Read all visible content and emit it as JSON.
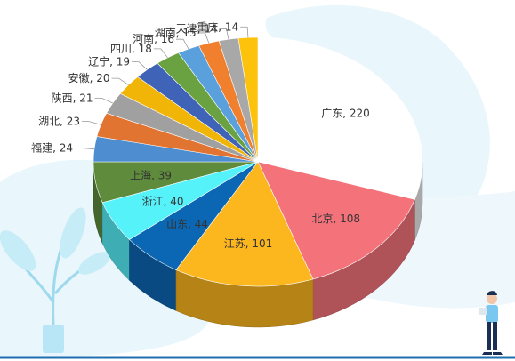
{
  "chart_data": {
    "type": "pie",
    "style": "3d",
    "start_angle_deg": -90,
    "direction": "clockwise",
    "title": "",
    "slices": [
      {
        "label": "广东",
        "value": 220,
        "color": "#ffffff",
        "text": "广东, 220"
      },
      {
        "label": "北京",
        "value": 108,
        "color": "#f4737b",
        "text": "北京, 108"
      },
      {
        "label": "江苏",
        "value": 101,
        "color": "#fcb61e",
        "text": "江苏, 101"
      },
      {
        "label": "山东",
        "value": 44,
        "color": "#0b67b3",
        "text": "山东, 44"
      },
      {
        "label": "浙江",
        "value": 40,
        "color": "#56f2fa",
        "text": "浙江, 40"
      },
      {
        "label": "上海",
        "value": 39,
        "color": "#5e8c3c",
        "text": "上海, 39"
      },
      {
        "label": "福建",
        "value": 24,
        "color": "#4e8ed0",
        "text": "福建, 24"
      },
      {
        "label": "湖北",
        "value": 23,
        "color": "#e27432",
        "text": "湖北, 23"
      },
      {
        "label": "陕西",
        "value": 21,
        "color": "#a0a0a0",
        "text": "陕西, 21"
      },
      {
        "label": "安徽",
        "value": 20,
        "color": "#f1b507",
        "text": "安徽, 20"
      },
      {
        "label": "辽宁",
        "value": 19,
        "color": "#3f63b6",
        "text": "辽宁, 19"
      },
      {
        "label": "四川",
        "value": 18,
        "color": "#6aa242",
        "text": "四川, 18"
      },
      {
        "label": "河南",
        "value": 16,
        "color": "#5aa0dc",
        "text": "河南, 16"
      },
      {
        "label": "湖南",
        "value": 15,
        "color": "#f07f2e",
        "text": "湖南, 15"
      },
      {
        "label": "天津",
        "value": 14,
        "color": "#a8a8a8",
        "text": "天津, 14"
      },
      {
        "label": "重庆",
        "value": 14,
        "color": "#fdc20c",
        "text": "重庆, 14"
      }
    ]
  },
  "decor": {
    "background_blob_color": "#e9f6fb",
    "plant_color": "#b9e6f6",
    "floor_line_color": "#1f6fb0",
    "illustration_icons": [
      "plant-illustration",
      "person-illustration"
    ]
  }
}
